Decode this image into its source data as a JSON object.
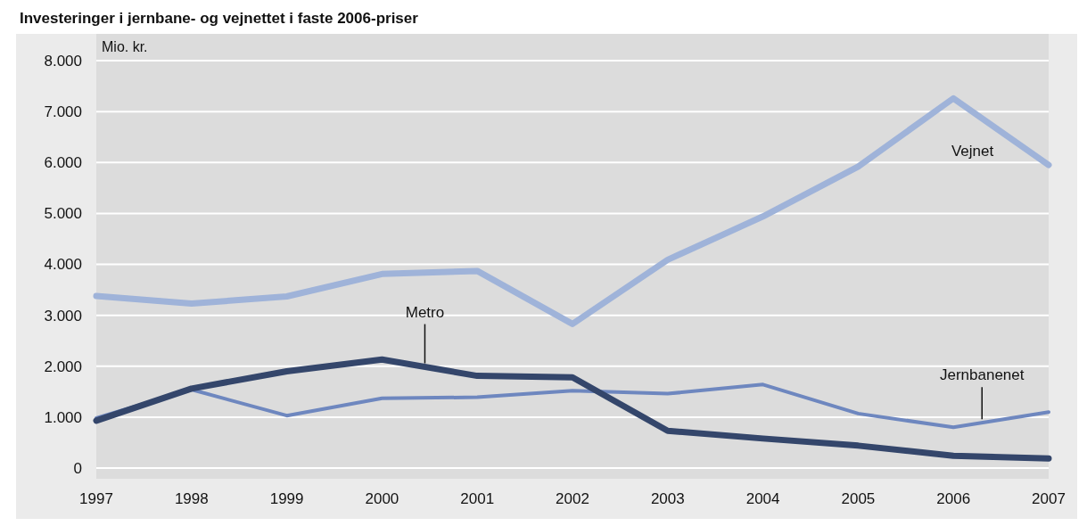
{
  "chart_data": {
    "type": "line",
    "title": "Investeringer i jernbane- og vejnettet i faste 2006-priser",
    "ylabel": "Mio. kr.",
    "x": [
      1997,
      1998,
      1999,
      2000,
      2001,
      2002,
      2003,
      2004,
      2005,
      2006,
      2007
    ],
    "xlim": [
      1997,
      2007
    ],
    "xticks": [
      1997,
      1998,
      1999,
      2000,
      2001,
      2002,
      2003,
      2004,
      2005,
      2006,
      2007
    ],
    "ylim": [
      0,
      8000
    ],
    "yticks": [
      0,
      {
        "value": 1000,
        "label": "1.000"
      },
      {
        "value": 2000,
        "label": "2.000"
      },
      {
        "value": 3000,
        "label": "3.000"
      },
      {
        "value": 4000,
        "label": "4.000"
      },
      {
        "value": 5000,
        "label": "5.000"
      },
      {
        "value": 6000,
        "label": "6.000"
      },
      {
        "value": 7000,
        "label": "7.000"
      },
      {
        "value": 8000,
        "label": "8.000"
      }
    ],
    "grid": "y",
    "legend": false,
    "marker": "none",
    "line_style": "solid",
    "series": [
      {
        "name": "Vejnet",
        "color": "#9fb3d9",
        "values": [
          3380,
          3230,
          3370,
          3810,
          3870,
          2830,
          4090,
          4940,
          5920,
          7260,
          5950
        ]
      },
      {
        "name": "Jernbanenet",
        "color": "#6e87bf",
        "values": [
          980,
          1540,
          1030,
          1370,
          1390,
          1520,
          1460,
          1640,
          1070,
          800,
          1100
        ]
      },
      {
        "name": "Metro",
        "color": "#34466b",
        "values": [
          930,
          1560,
          1900,
          2130,
          1810,
          1780,
          730,
          580,
          440,
          240,
          190
        ]
      }
    ]
  }
}
